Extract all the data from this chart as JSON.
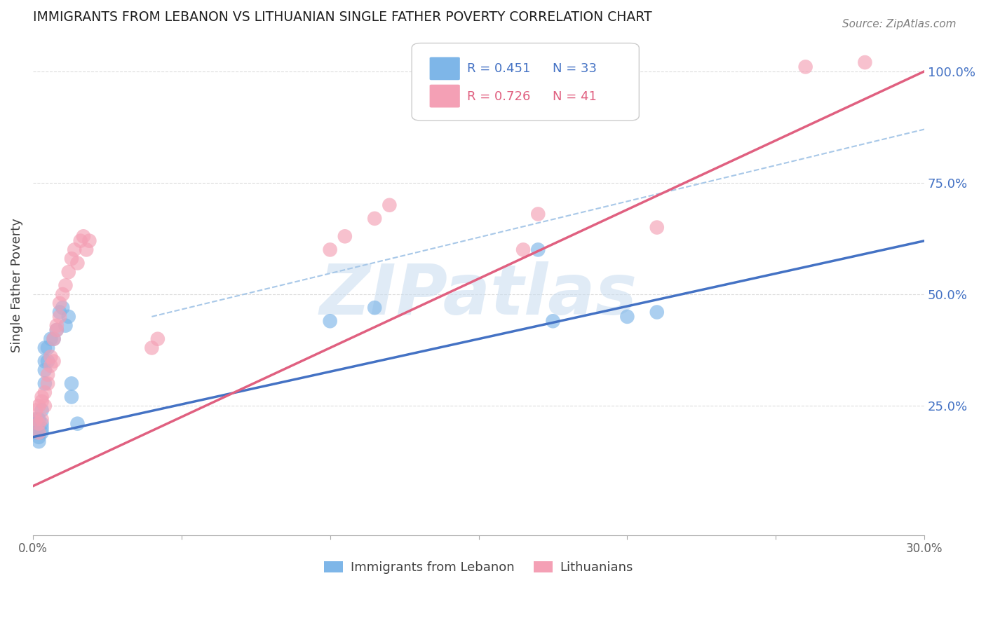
{
  "title": "IMMIGRANTS FROM LEBANON VS LITHUANIAN SINGLE FATHER POVERTY CORRELATION CHART",
  "source": "Source: ZipAtlas.com",
  "ylabel": "Single Father Poverty",
  "xlim": [
    0.0,
    0.3
  ],
  "ylim": [
    -0.04,
    1.08
  ],
  "legend_blue_R": "R = 0.451",
  "legend_blue_N": "N = 33",
  "legend_pink_R": "R = 0.726",
  "legend_pink_N": "N = 41",
  "blue_scatter_x": [
    0.001,
    0.001,
    0.001,
    0.002,
    0.002,
    0.002,
    0.002,
    0.003,
    0.003,
    0.003,
    0.003,
    0.004,
    0.004,
    0.004,
    0.004,
    0.005,
    0.005,
    0.006,
    0.007,
    0.008,
    0.009,
    0.01,
    0.011,
    0.012,
    0.013,
    0.013,
    0.015,
    0.1,
    0.115,
    0.17,
    0.175,
    0.2,
    0.21
  ],
  "blue_scatter_y": [
    0.19,
    0.21,
    0.22,
    0.17,
    0.18,
    0.2,
    0.22,
    0.19,
    0.2,
    0.21,
    0.24,
    0.3,
    0.33,
    0.35,
    0.38,
    0.35,
    0.38,
    0.4,
    0.4,
    0.42,
    0.46,
    0.47,
    0.43,
    0.45,
    0.27,
    0.3,
    0.21,
    0.44,
    0.47,
    0.6,
    0.44,
    0.45,
    0.46
  ],
  "pink_scatter_x": [
    0.001,
    0.001,
    0.002,
    0.002,
    0.002,
    0.003,
    0.003,
    0.003,
    0.004,
    0.004,
    0.005,
    0.005,
    0.006,
    0.006,
    0.007,
    0.007,
    0.008,
    0.008,
    0.009,
    0.009,
    0.01,
    0.011,
    0.012,
    0.013,
    0.014,
    0.015,
    0.016,
    0.017,
    0.018,
    0.019,
    0.04,
    0.042,
    0.1,
    0.105,
    0.115,
    0.12,
    0.165,
    0.17,
    0.21,
    0.26,
    0.28
  ],
  "pink_scatter_y": [
    0.22,
    0.24,
    0.19,
    0.21,
    0.25,
    0.22,
    0.26,
    0.27,
    0.25,
    0.28,
    0.3,
    0.32,
    0.34,
    0.36,
    0.35,
    0.4,
    0.42,
    0.43,
    0.45,
    0.48,
    0.5,
    0.52,
    0.55,
    0.58,
    0.6,
    0.57,
    0.62,
    0.63,
    0.6,
    0.62,
    0.38,
    0.4,
    0.6,
    0.63,
    0.67,
    0.7,
    0.6,
    0.68,
    0.65,
    1.01,
    1.02
  ],
  "blue_line_x": [
    0.0,
    0.3
  ],
  "blue_line_y": [
    0.18,
    0.62
  ],
  "pink_line_x": [
    0.0,
    0.3
  ],
  "pink_line_y": [
    0.07,
    1.0
  ],
  "diagonal_line_x": [
    0.04,
    0.3
  ],
  "diagonal_line_y": [
    0.45,
    0.87
  ],
  "watermark": "ZIPatlas",
  "blue_color": "#7EB6E8",
  "pink_color": "#F4A0B5",
  "blue_line_color": "#4472C4",
  "pink_line_color": "#E06080",
  "diagonal_color": "#A8C8E8",
  "grid_color": "#DCDCDC",
  "title_color": "#202020",
  "right_axis_color": "#4472C4",
  "watermark_color": "#C8DCF0",
  "axis_label_color": "#606060",
  "ylabel_color": "#404040"
}
